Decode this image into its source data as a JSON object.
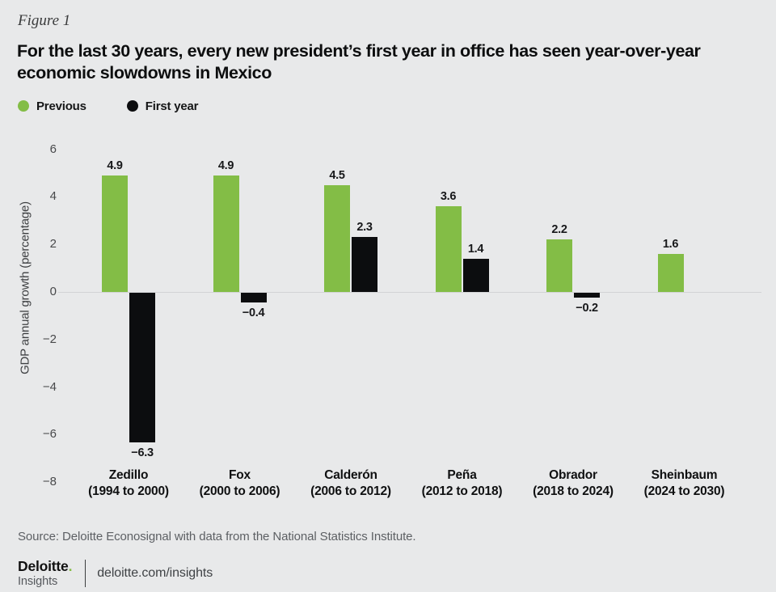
{
  "figure_label": "Figure 1",
  "title_lines": [
    "For the last 30 years, every new president’s first year in office has seen year-over-year",
    "economic slowdowns in Mexico"
  ],
  "chart_data": {
    "type": "bar",
    "title": "For the last 30 years, every new president’s first year in office has seen year-over-year economic slowdowns in Mexico",
    "categories": [
      {
        "name": "Zedillo",
        "term": "(1994 to 2000)"
      },
      {
        "name": "Fox",
        "term": "(2000 to 2006)"
      },
      {
        "name": "Calderón",
        "term": "(2006 to 2012)"
      },
      {
        "name": "Peña",
        "term": "(2012 to 2018)"
      },
      {
        "name": "Obrador",
        "term": "(2018 to 2024)"
      },
      {
        "name": "Sheinbaum",
        "term": "(2024 to 2030)"
      }
    ],
    "series": [
      {
        "name": "Previous",
        "color": "#83bd46",
        "values": [
          4.9,
          4.9,
          4.5,
          3.6,
          2.2,
          1.6
        ]
      },
      {
        "name": "First year",
        "color": "#0c0d0f",
        "values": [
          -6.3,
          -0.4,
          2.3,
          1.4,
          -0.2,
          null
        ]
      }
    ],
    "ylabel": "GDP annual growth (percentage)",
    "yticks": [
      6,
      4,
      2,
      0,
      -2,
      -4,
      -6,
      -8
    ],
    "ylim": [
      -8,
      6
    ],
    "grid": "zero-line-only",
    "legend_position": "top-left"
  },
  "source": "Source: Deloitte Econosignal with data from the National Statistics Institute.",
  "footer": {
    "brand_name": "Deloitte",
    "brand_dot": ".",
    "brand_sub": "Insights",
    "link": "deloitte.com/insights"
  },
  "colors": {
    "background": "#e8e9ea",
    "previous": "#83bd46",
    "first_year": "#0c0d0f",
    "zero_line": "#d2d3d5"
  }
}
